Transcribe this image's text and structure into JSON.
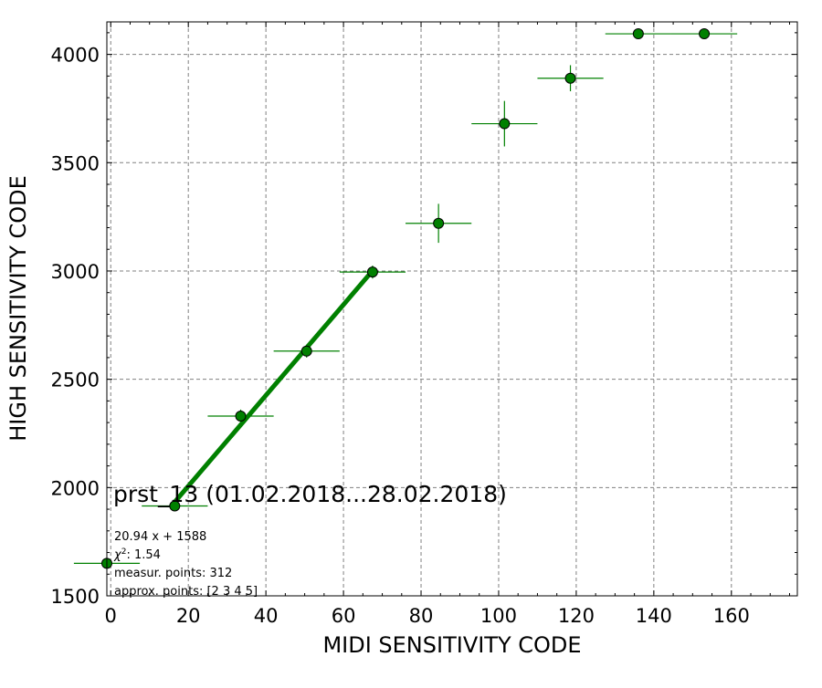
{
  "chart_data": {
    "type": "scatter",
    "title": "",
    "xlabel": "MIDI SENSITIVITY CODE",
    "ylabel": "HIGH SENSITIVITY CODE",
    "xlim": [
      -1,
      177
    ],
    "ylim": [
      1500,
      4150
    ],
    "x_ticks": [
      0,
      20,
      40,
      60,
      80,
      100,
      120,
      140,
      160
    ],
    "y_ticks": [
      1500,
      2000,
      2500,
      3000,
      3500,
      4000
    ],
    "grid": true,
    "colors": {
      "marker": "#008000",
      "marker_edge": "#000000",
      "errorbar": "#008000",
      "fit_line": "#008000",
      "grid": "#808080"
    },
    "series": [
      {
        "points": [
          {
            "x": -1,
            "y": 1650,
            "xerr": 8.5,
            "yerr": 0
          },
          {
            "x": 16.5,
            "y": 1915,
            "xerr": 8.5,
            "yerr": 15
          },
          {
            "x": 33.5,
            "y": 2330,
            "xerr": 8.5,
            "yerr": 30
          },
          {
            "x": 50.5,
            "y": 2630,
            "xerr": 8.5,
            "yerr": 30
          },
          {
            "x": 67.5,
            "y": 2995,
            "xerr": 8.5,
            "yerr": 30
          },
          {
            "x": 84.5,
            "y": 3220,
            "xerr": 8.5,
            "yerr": 90
          },
          {
            "x": 101.5,
            "y": 3680,
            "xerr": 8.5,
            "yerr": 105
          },
          {
            "x": 118.5,
            "y": 3890,
            "xerr": 8.5,
            "yerr": 60
          },
          {
            "x": 136,
            "y": 4095,
            "xerr": 8.5,
            "yerr": 0
          },
          {
            "x": 153,
            "y": 4095,
            "xerr": 8.5,
            "yerr": 0
          }
        ]
      }
    ],
    "fit": {
      "slope": 20.94,
      "intercept": 1588,
      "x_range": [
        16.5,
        67.5
      ]
    },
    "annotations": {
      "title_text": "prst_13 (01.02.2018...28.02.2018)",
      "lines": [
        {
          "kind": "plain",
          "text": "20.94 x + 1588"
        },
        {
          "kind": "chi2",
          "prefix": "χ",
          "sup": "2",
          "text": ": 1.54"
        },
        {
          "kind": "plain",
          "text": "measur. points: 312"
        },
        {
          "kind": "plain",
          "text": "approx. points: [2 3 4 5]"
        }
      ]
    }
  }
}
